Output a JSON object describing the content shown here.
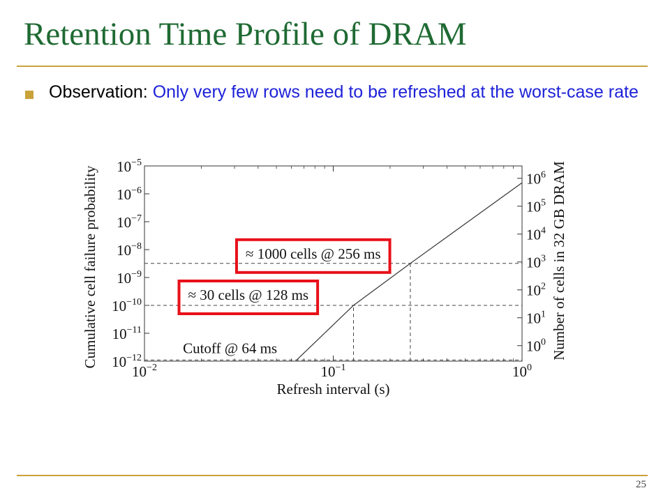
{
  "slide": {
    "title": "Retention Time Profile of DRAM",
    "bullet": {
      "label": "Observation: ",
      "text": "Only very few rows need to be refreshed at the worst-case rate"
    },
    "page_number": "25"
  },
  "colors": {
    "title": "#1f6a33",
    "rule": "#c9a23a",
    "bullet_mark": "#c9a23a",
    "bullet_text": "#1e22d8",
    "highlight_box": "#e8101a"
  },
  "chart_data": {
    "type": "line",
    "scale": {
      "x": "log",
      "y": "log",
      "y_right": "log"
    },
    "xlabel": "Refresh interval (s)",
    "ylabel": "Cumulative cell failure probability",
    "ylabel_right": "Number of cells in 32 GB DRAM",
    "xlim": [
      0.01,
      1
    ],
    "ylim": [
      1e-12,
      1e-05
    ],
    "x_ticks": [
      {
        "value": 0.01,
        "base": "10",
        "exp": "−2"
      },
      {
        "value": 0.1,
        "base": "10",
        "exp": "−1"
      },
      {
        "value": 1,
        "base": "10",
        "exp": "0"
      }
    ],
    "y_ticks": [
      {
        "value": 1e-05,
        "base": "10",
        "exp": "−5"
      },
      {
        "value": 1e-06,
        "base": "10",
        "exp": "−6"
      },
      {
        "value": 1e-07,
        "base": "10",
        "exp": "−7"
      },
      {
        "value": 1e-08,
        "base": "10",
        "exp": "−8"
      },
      {
        "value": 1e-09,
        "base": "10",
        "exp": "−9"
      },
      {
        "value": 1e-10,
        "base": "10",
        "exp": "−10"
      },
      {
        "value": 1e-11,
        "base": "10",
        "exp": "−11"
      },
      {
        "value": 1e-12,
        "base": "10",
        "exp": "−12"
      }
    ],
    "y_right_ticks": [
      {
        "value": 1,
        "y_equiv": 3.6e-12,
        "base": "10",
        "exp": "0"
      },
      {
        "value": 10,
        "y_equiv": 3.6e-11,
        "base": "10",
        "exp": "1"
      },
      {
        "value": 100,
        "y_equiv": 3.6e-10,
        "base": "10",
        "exp": "2"
      },
      {
        "value": 1000,
        "y_equiv": 3.6e-09,
        "base": "10",
        "exp": "3"
      },
      {
        "value": 10000,
        "y_equiv": 3.6e-08,
        "base": "10",
        "exp": "4"
      },
      {
        "value": 100000,
        "y_equiv": 3.6e-07,
        "base": "10",
        "exp": "5"
      },
      {
        "value": 1000000,
        "y_equiv": 3.6e-06,
        "base": "10",
        "exp": "6"
      }
    ],
    "series": [
      {
        "x": [
          0.064,
          0.128,
          0.256,
          1.0
        ],
        "y": [
          1.1e-12,
          1e-10,
          3.2e-09,
          2.5e-06
        ]
      }
    ],
    "reference_points": [
      {
        "x": 0.064,
        "y": 1.1e-12,
        "label": "Cutoff @ 64 ms",
        "highlighted": false
      },
      {
        "x": 0.128,
        "y": 1e-10,
        "label": "≈ 30 cells @ 128 ms",
        "highlighted": true
      },
      {
        "x": 0.256,
        "y": 3.2e-09,
        "label": "≈ 1000 cells @ 256 ms",
        "highlighted": true
      }
    ],
    "grid": false
  }
}
